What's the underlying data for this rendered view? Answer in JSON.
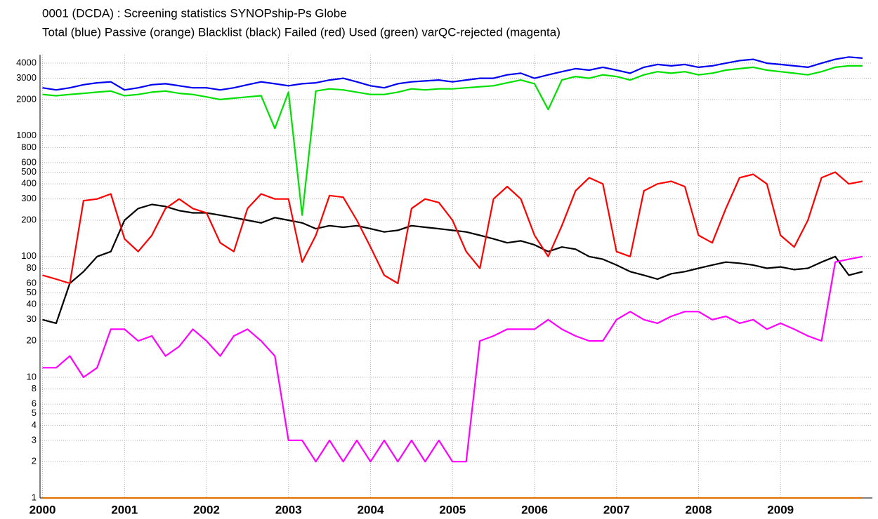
{
  "chart_data": {
    "type": "line",
    "title": "0001 (DCDA)  : Screening statistics  SYNOPship-Ps  Globe",
    "subtitle": "Total (blue) Passive (orange) Blacklist (black) Failed (red) Used (green) varQC-rejected (magenta)",
    "yscale": "log",
    "grid": true,
    "xlim": [
      1999.97,
      2010.12
    ],
    "xticks": [
      2000,
      2001,
      2002,
      2003,
      2004,
      2005,
      2006,
      2007,
      2008,
      2009
    ],
    "ylim": [
      1,
      4700
    ],
    "yticks": [
      1,
      2,
      3,
      4,
      5,
      6,
      8,
      10,
      20,
      30,
      40,
      50,
      60,
      80,
      100,
      200,
      300,
      400,
      500,
      600,
      800,
      1000,
      2000,
      3000,
      4000
    ],
    "x": [
      2000,
      2000.1667,
      2000.3333,
      2000.5,
      2000.6667,
      2000.8333,
      2001,
      2001.1667,
      2001.3333,
      2001.5,
      2001.6667,
      2001.8333,
      2002,
      2002.1667,
      2002.3333,
      2002.5,
      2002.6667,
      2002.8333,
      2003,
      2003.1667,
      2003.3333,
      2003.5,
      2003.6667,
      2003.8333,
      2004,
      2004.1667,
      2004.3333,
      2004.5,
      2004.6667,
      2004.8333,
      2005,
      2005.1667,
      2005.3333,
      2005.5,
      2005.6667,
      2005.8333,
      2006,
      2006.1667,
      2006.3333,
      2006.5,
      2006.6667,
      2006.8333,
      2007,
      2007.1667,
      2007.3333,
      2007.5,
      2007.6667,
      2007.8333,
      2008,
      2008.1667,
      2008.3333,
      2008.5,
      2008.6667,
      2008.8333,
      2009,
      2009.1667,
      2009.3333,
      2009.5,
      2009.6667,
      2009.8333,
      2010
    ],
    "series": [
      {
        "color": "#e07000",
        "values": [
          1,
          1,
          1,
          1,
          1,
          1,
          1,
          1,
          1,
          1,
          1,
          1,
          1,
          1,
          1,
          1,
          1,
          1,
          1,
          1,
          1,
          1,
          1,
          1,
          1,
          1,
          1,
          1,
          1,
          1,
          1,
          1,
          1,
          1,
          1,
          1,
          1,
          1,
          1,
          1,
          1,
          1,
          1,
          1,
          1,
          1,
          1,
          1,
          1,
          1,
          1,
          1,
          1,
          1,
          1,
          1,
          1,
          1,
          1,
          1,
          1
        ]
      },
      {
        "color": "#000000",
        "values": [
          30,
          28,
          60,
          75,
          100,
          110,
          200,
          250,
          270,
          260,
          240,
          230,
          230,
          220,
          210,
          200,
          190,
          210,
          200,
          190,
          170,
          180,
          175,
          180,
          170,
          160,
          165,
          180,
          175,
          170,
          165,
          160,
          150,
          140,
          130,
          135,
          125,
          110,
          120,
          115,
          100,
          95,
          85,
          75,
          70,
          65,
          72,
          75,
          80,
          85,
          90,
          88,
          85,
          80,
          82,
          78,
          80,
          90,
          100,
          70,
          75
        ]
      },
      {
        "color": "#ff0000",
        "values": [
          70,
          65,
          60,
          290,
          300,
          330,
          140,
          110,
          150,
          250,
          300,
          250,
          230,
          130,
          110,
          250,
          330,
          300,
          300,
          90,
          150,
          320,
          310,
          200,
          120,
          70,
          60,
          250,
          300,
          280,
          200,
          110,
          80,
          300,
          380,
          300,
          150,
          100,
          180,
          350,
          450,
          400,
          110,
          100,
          350,
          400,
          420,
          380,
          150,
          130,
          250,
          450,
          480,
          400,
          150,
          120,
          200,
          450,
          500,
          400,
          420
        ]
      },
      {
        "color": "#ff00ff",
        "values": [
          12,
          12,
          15,
          10,
          12,
          25,
          25,
          20,
          22,
          15,
          18,
          25,
          20,
          15,
          22,
          25,
          20,
          15,
          3,
          3,
          2,
          3,
          2,
          3,
          2,
          3,
          2,
          3,
          2,
          3,
          2,
          2,
          20,
          22,
          25,
          25,
          25,
          30,
          25,
          22,
          20,
          20,
          30,
          35,
          30,
          28,
          32,
          35,
          35,
          30,
          32,
          28,
          30,
          25,
          28,
          25,
          22,
          20,
          90,
          95,
          100
        ]
      },
      {
        "color": "#00e000",
        "values": [
          2200,
          2150,
          2200,
          2250,
          2300,
          2350,
          2150,
          2200,
          2300,
          2350,
          2250,
          2200,
          2100,
          2000,
          2050,
          2100,
          2150,
          1150,
          2300,
          220,
          2350,
          2450,
          2400,
          2300,
          2200,
          2200,
          2300,
          2450,
          2400,
          2450,
          2450,
          2500,
          2550,
          2600,
          2750,
          2900,
          2700,
          1650,
          2900,
          3100,
          3000,
          3200,
          3100,
          2900,
          3200,
          3400,
          3300,
          3400,
          3200,
          3300,
          3500,
          3600,
          3700,
          3500,
          3400,
          3300,
          3200,
          3400,
          3700,
          3800,
          3800
        ]
      },
      {
        "color": "#0000ee",
        "values": [
          2500,
          2400,
          2500,
          2650,
          2750,
          2800,
          2400,
          2500,
          2650,
          2700,
          2600,
          2500,
          2500,
          2400,
          2500,
          2650,
          2800,
          2700,
          2600,
          2700,
          2750,
          2900,
          3000,
          2800,
          2600,
          2500,
          2700,
          2800,
          2850,
          2900,
          2800,
          2900,
          3000,
          3000,
          3200,
          3300,
          3000,
          3200,
          3400,
          3600,
          3500,
          3700,
          3500,
          3300,
          3700,
          3900,
          3800,
          3900,
          3700,
          3800,
          4000,
          4200,
          4300,
          4000,
          3900,
          3800,
          3700,
          4000,
          4300,
          4500,
          4400
        ]
      }
    ]
  }
}
